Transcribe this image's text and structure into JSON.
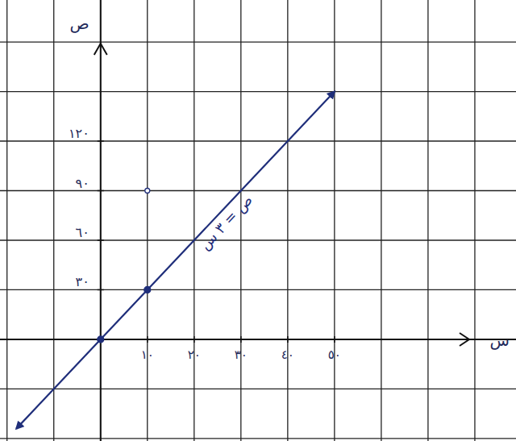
{
  "chart_data": {
    "type": "line",
    "x_label": "س",
    "y_label": "ص",
    "xlim": [
      -21.5,
      88.8
    ],
    "ylim": [
      -61.5,
      205.4
    ],
    "xticks": [
      {
        "value": 10,
        "label": "١٠"
      },
      {
        "value": 20,
        "label": "٢٠"
      },
      {
        "value": 30,
        "label": "٣٠"
      },
      {
        "value": 40,
        "label": "٤٠"
      },
      {
        "value": 50,
        "label": "٥٠"
      }
    ],
    "yticks": [
      {
        "value": 30,
        "label": "٣٠"
      },
      {
        "value": 60,
        "label": "٦٠"
      },
      {
        "value": 90,
        "label": "٩٠"
      },
      {
        "value": 120,
        "label": "١٢٠"
      }
    ],
    "grid": true,
    "series": [
      {
        "type": "line",
        "color": "#1f2e7a",
        "marker": "arrow",
        "x": [
          -18,
          50
        ],
        "values": [
          -54,
          150
        ]
      },
      {
        "type": "scatter",
        "color": "#1f2e7a",
        "marker": "filled",
        "x": [
          0,
          10
        ],
        "values": [
          0,
          30
        ]
      },
      {
        "type": "scatter",
        "color": "#1f2e7a",
        "marker": "open",
        "x": [
          10
        ],
        "values": [
          90
        ]
      }
    ],
    "annotations": [
      {
        "text": "ص = ٣ س",
        "x": 27.6,
        "y": 68.8
      }
    ]
  }
}
